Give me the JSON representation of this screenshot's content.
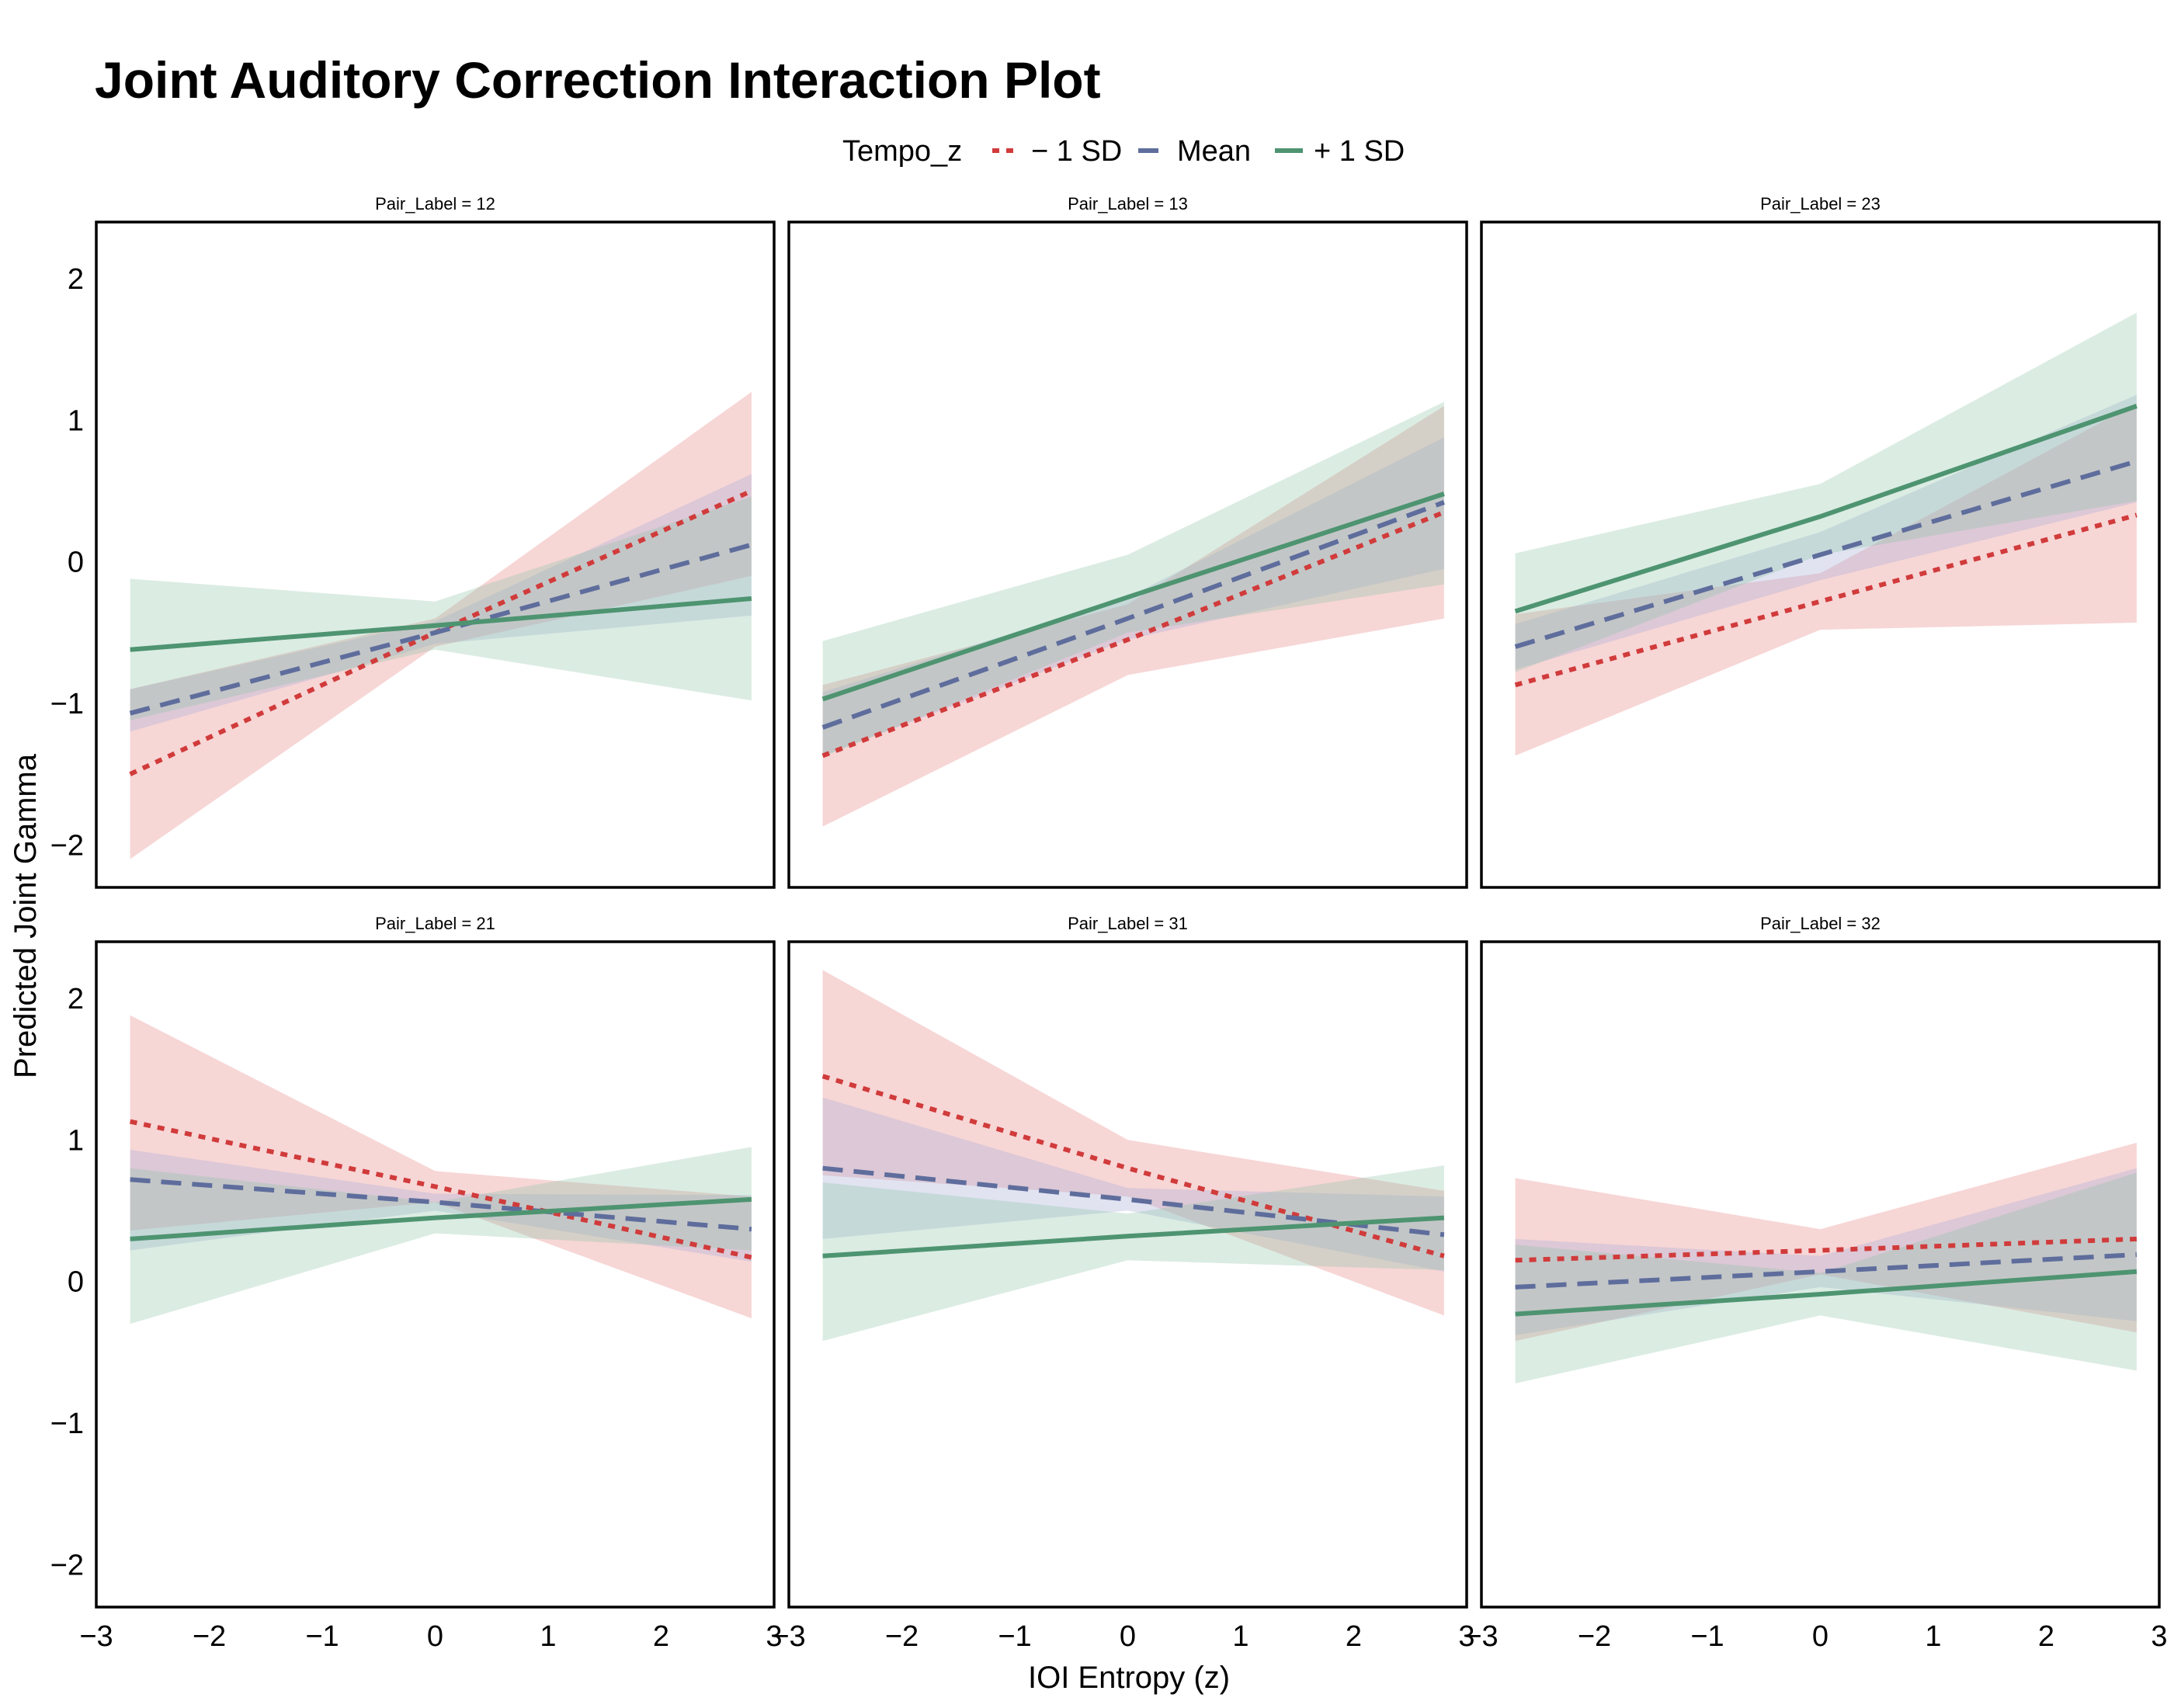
{
  "chart_data": {
    "type": "line",
    "title": "Joint Auditory Correction Interaction Plot",
    "xlabel": "IOI Entropy (z)",
    "ylabel": "Predicted Joint Gamma",
    "xlim": [
      -3,
      3
    ],
    "ylim": [
      -2.3,
      2.4
    ],
    "x_ticks": [
      -3,
      -2,
      -1,
      0,
      1,
      2,
      3
    ],
    "x_tick_labels": [
      "−3",
      "−2",
      "−1",
      "0",
      "1",
      "2",
      "3"
    ],
    "y_ticks": [
      -2,
      -1,
      0,
      1,
      2
    ],
    "y_tick_labels": [
      "−2",
      "−1",
      "0",
      "1",
      "2"
    ],
    "legend": {
      "title": "Tempo_z",
      "position": "top",
      "entries": [
        {
          "label": "− 1 SD",
          "color": "#d13b3b",
          "dash": "dotted"
        },
        {
          "label": "Mean",
          "color": "#5e6d9c",
          "dash": "dashed"
        },
        {
          "label": "+ 1 SD",
          "color": "#4e9471",
          "dash": "solid"
        }
      ]
    },
    "grid": false,
    "series_styles": [
      {
        "color": "#d13b3b",
        "fill": "#e88a8a",
        "fill_opacity": 0.35,
        "dash": "dotted"
      },
      {
        "color": "#5e6d9c",
        "fill": "#a8afd8",
        "fill_opacity": 0.35,
        "dash": "dashed"
      },
      {
        "color": "#4e9471",
        "fill": "#8ec3a8",
        "fill_opacity": 0.32,
        "dash": "solid"
      }
    ],
    "panels": [
      {
        "strip": "Pair_Label = 12",
        "series": [
          {
            "x": [
              -2.7,
              0,
              2.8
            ],
            "y": [
              -1.5,
              -0.5,
              0.5
            ],
            "lower": [
              -2.1,
              -0.6,
              -0.1
            ],
            "upper": [
              -0.9,
              -0.4,
              1.2
            ]
          },
          {
            "x": [
              -2.7,
              0,
              2.8
            ],
            "y": [
              -1.07,
              -0.5,
              0.12
            ],
            "lower": [
              -1.2,
              -0.58,
              -0.38
            ],
            "upper": [
              -0.9,
              -0.42,
              0.62
            ]
          },
          {
            "x": [
              -2.7,
              0,
              2.8
            ],
            "y": [
              -0.62,
              -0.45,
              -0.26
            ],
            "lower": [
              -1.12,
              -0.62,
              -0.98
            ],
            "upper": [
              -0.12,
              -0.28,
              0.46
            ]
          }
        ]
      },
      {
        "strip": "Pair_Label = 13",
        "series": [
          {
            "x": [
              -2.7,
              0,
              2.8
            ],
            "y": [
              -1.37,
              -0.55,
              0.35
            ],
            "lower": [
              -1.87,
              -0.8,
              -0.4
            ],
            "upper": [
              -0.87,
              -0.3,
              1.1
            ]
          },
          {
            "x": [
              -2.7,
              0,
              2.8
            ],
            "y": [
              -1.17,
              -0.4,
              0.42
            ],
            "lower": [
              -1.37,
              -0.55,
              -0.05
            ],
            "upper": [
              -0.92,
              -0.25,
              0.88
            ]
          },
          {
            "x": [
              -2.7,
              0,
              2.8
            ],
            "y": [
              -0.97,
              -0.25,
              0.48
            ],
            "lower": [
              -1.38,
              -0.5,
              -0.16
            ],
            "upper": [
              -0.56,
              0.05,
              1.13
            ]
          }
        ]
      },
      {
        "strip": "Pair_Label = 23",
        "series": [
          {
            "x": [
              -2.7,
              0,
              2.8
            ],
            "y": [
              -0.87,
              -0.28,
              0.33
            ],
            "lower": [
              -1.37,
              -0.48,
              -0.43
            ],
            "upper": [
              -0.37,
              -0.08,
              1.12
            ]
          },
          {
            "x": [
              -2.7,
              0,
              2.8
            ],
            "y": [
              -0.6,
              0.05,
              0.71
            ],
            "lower": [
              -0.76,
              -0.13,
              0.42
            ],
            "upper": [
              -0.44,
              0.21,
              1.18
            ]
          },
          {
            "x": [
              -2.7,
              0,
              2.8
            ],
            "y": [
              -0.35,
              0.32,
              1.1
            ],
            "lower": [
              -0.78,
              0.05,
              0.43
            ],
            "upper": [
              0.06,
              0.55,
              1.76
            ]
          }
        ]
      },
      {
        "strip": "Pair_Label = 21",
        "series": [
          {
            "x": [
              -2.7,
              0,
              2.8
            ],
            "y": [
              1.13,
              0.67,
              0.17
            ],
            "lower": [
              0.36,
              0.56,
              -0.26
            ],
            "upper": [
              1.88,
              0.78,
              0.6
            ]
          },
          {
            "x": [
              -2.7,
              0,
              2.8
            ],
            "y": [
              0.72,
              0.56,
              0.37
            ],
            "lower": [
              0.22,
              0.5,
              0.14
            ],
            "upper": [
              0.93,
              0.62,
              0.61
            ]
          },
          {
            "x": [
              -2.7,
              0,
              2.8
            ],
            "y": [
              0.3,
              0.45,
              0.58
            ],
            "lower": [
              -0.3,
              0.34,
              0.22
            ],
            "upper": [
              0.8,
              0.56,
              0.95
            ]
          }
        ]
      },
      {
        "strip": "Pair_Label = 31",
        "series": [
          {
            "x": [
              -2.7,
              0,
              2.8
            ],
            "y": [
              1.45,
              0.8,
              0.18
            ],
            "lower": [
              0.75,
              0.6,
              -0.24
            ],
            "upper": [
              2.2,
              1.0,
              0.64
            ]
          },
          {
            "x": [
              -2.7,
              0,
              2.8
            ],
            "y": [
              0.8,
              0.58,
              0.33
            ],
            "lower": [
              0.3,
              0.5,
              0.07
            ],
            "upper": [
              1.3,
              0.66,
              0.6
            ]
          },
          {
            "x": [
              -2.7,
              0,
              2.8
            ],
            "y": [
              0.18,
              0.32,
              0.45
            ],
            "lower": [
              -0.42,
              0.15,
              0.08
            ],
            "upper": [
              0.7,
              0.48,
              0.82
            ]
          }
        ]
      },
      {
        "strip": "Pair_Label = 32",
        "series": [
          {
            "x": [
              -2.7,
              0,
              2.8
            ],
            "y": [
              0.15,
              0.22,
              0.3
            ],
            "lower": [
              -0.42,
              0.05,
              -0.36
            ],
            "upper": [
              0.73,
              0.37,
              0.98
            ]
          },
          {
            "x": [
              -2.7,
              0,
              2.8
            ],
            "y": [
              -0.04,
              0.07,
              0.19
            ],
            "lower": [
              -0.38,
              -0.04,
              -0.28
            ],
            "upper": [
              0.3,
              0.18,
              0.8
            ]
          },
          {
            "x": [
              -2.7,
              0,
              2.8
            ],
            "y": [
              -0.23,
              -0.09,
              0.07
            ],
            "lower": [
              -0.72,
              -0.24,
              -0.63
            ],
            "upper": [
              0.26,
              0.06,
              0.77
            ]
          }
        ]
      }
    ]
  }
}
